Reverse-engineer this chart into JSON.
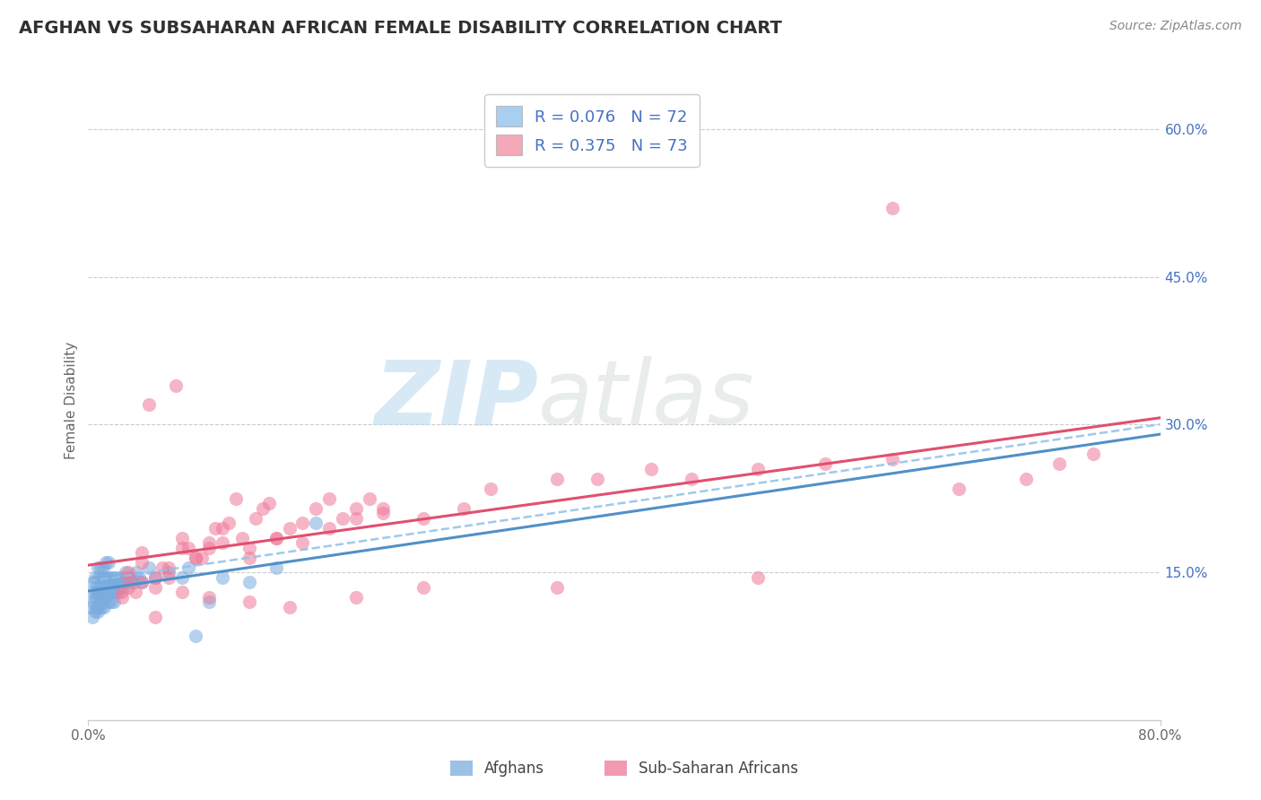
{
  "title": "AFGHAN VS SUBSAHARAN AFRICAN FEMALE DISABILITY CORRELATION CHART",
  "source": "Source: ZipAtlas.com",
  "ylabel": "Female Disability",
  "xlim": [
    0.0,
    0.8
  ],
  "ylim": [
    0.0,
    0.65
  ],
  "yticks": [
    0.15,
    0.3,
    0.45,
    0.6
  ],
  "ytick_labels": [
    "15.0%",
    "30.0%",
    "45.0%",
    "60.0%"
  ],
  "xticks": [
    0.0,
    0.8
  ],
  "xtick_labels": [
    "0.0%",
    "80.0%"
  ],
  "background_color": "#ffffff",
  "watermark_zip": "ZIP",
  "watermark_atlas": "atlas",
  "legend_R1": "0.076",
  "legend_N1": "72",
  "legend_R2": "0.375",
  "legend_N2": "73",
  "group1_label": "Afghans",
  "group2_label": "Sub-Saharan Africans",
  "group1_patch_color": "#a8cef0",
  "group2_patch_color": "#f4a8b8",
  "group1_scatter_color": "#7aacdf",
  "group2_scatter_color": "#f07898",
  "trend1_color": "#5090c8",
  "trend2_color": "#e05070",
  "title_color": "#303030",
  "source_color": "#888888",
  "title_fontsize": 14,
  "source_fontsize": 10,
  "axis_label_fontsize": 11,
  "tick_fontsize": 11,
  "ytick_color": "#4472c4",
  "xtick_color": "#666666",
  "grid_color": "#cccccc",
  "legend_text_color": "#4472c4",
  "legend_border_color": "#cccccc",
  "afghan_x": [
    0.002,
    0.003,
    0.003,
    0.004,
    0.004,
    0.005,
    0.005,
    0.005,
    0.006,
    0.006,
    0.006,
    0.007,
    0.007,
    0.007,
    0.008,
    0.008,
    0.008,
    0.009,
    0.009,
    0.009,
    0.01,
    0.01,
    0.01,
    0.011,
    0.011,
    0.011,
    0.012,
    0.012,
    0.012,
    0.013,
    0.013,
    0.013,
    0.014,
    0.014,
    0.015,
    0.015,
    0.015,
    0.016,
    0.016,
    0.017,
    0.017,
    0.018,
    0.018,
    0.019,
    0.019,
    0.02,
    0.02,
    0.021,
    0.022,
    0.023,
    0.024,
    0.025,
    0.026,
    0.027,
    0.028,
    0.03,
    0.032,
    0.034,
    0.036,
    0.038,
    0.04,
    0.045,
    0.05,
    0.06,
    0.07,
    0.075,
    0.08,
    0.09,
    0.1,
    0.12,
    0.14,
    0.17
  ],
  "afghan_y": [
    0.115,
    0.13,
    0.105,
    0.12,
    0.14,
    0.125,
    0.11,
    0.145,
    0.13,
    0.115,
    0.14,
    0.125,
    0.11,
    0.155,
    0.13,
    0.145,
    0.115,
    0.14,
    0.12,
    0.155,
    0.13,
    0.145,
    0.115,
    0.14,
    0.125,
    0.155,
    0.13,
    0.145,
    0.115,
    0.14,
    0.125,
    0.16,
    0.13,
    0.145,
    0.12,
    0.14,
    0.16,
    0.13,
    0.145,
    0.12,
    0.14,
    0.13,
    0.145,
    0.12,
    0.14,
    0.13,
    0.145,
    0.14,
    0.13,
    0.145,
    0.14,
    0.135,
    0.145,
    0.14,
    0.15,
    0.14,
    0.145,
    0.14,
    0.15,
    0.145,
    0.14,
    0.155,
    0.145,
    0.15,
    0.145,
    0.155,
    0.085,
    0.12,
    0.145,
    0.14,
    0.155,
    0.2
  ],
  "subsaharan_x": [
    0.03,
    0.04,
    0.045,
    0.05,
    0.055,
    0.06,
    0.065,
    0.07,
    0.075,
    0.08,
    0.085,
    0.09,
    0.095,
    0.1,
    0.105,
    0.11,
    0.115,
    0.12,
    0.125,
    0.13,
    0.135,
    0.14,
    0.15,
    0.16,
    0.17,
    0.18,
    0.19,
    0.2,
    0.21,
    0.22,
    0.025,
    0.03,
    0.035,
    0.04,
    0.05,
    0.06,
    0.07,
    0.08,
    0.09,
    0.1,
    0.12,
    0.14,
    0.16,
    0.18,
    0.2,
    0.22,
    0.25,
    0.28,
    0.3,
    0.35,
    0.38,
    0.42,
    0.45,
    0.5,
    0.55,
    0.6,
    0.65,
    0.7,
    0.725,
    0.75,
    0.025,
    0.03,
    0.04,
    0.05,
    0.07,
    0.09,
    0.12,
    0.15,
    0.2,
    0.25,
    0.35,
    0.5,
    0.6
  ],
  "subsaharan_y": [
    0.145,
    0.17,
    0.32,
    0.135,
    0.155,
    0.145,
    0.34,
    0.175,
    0.175,
    0.165,
    0.165,
    0.18,
    0.195,
    0.195,
    0.2,
    0.225,
    0.185,
    0.175,
    0.205,
    0.215,
    0.22,
    0.185,
    0.195,
    0.2,
    0.215,
    0.225,
    0.205,
    0.215,
    0.225,
    0.21,
    0.13,
    0.15,
    0.13,
    0.16,
    0.145,
    0.155,
    0.185,
    0.165,
    0.175,
    0.18,
    0.165,
    0.185,
    0.18,
    0.195,
    0.205,
    0.215,
    0.205,
    0.215,
    0.235,
    0.245,
    0.245,
    0.255,
    0.245,
    0.255,
    0.26,
    0.265,
    0.235,
    0.245,
    0.26,
    0.27,
    0.125,
    0.135,
    0.14,
    0.105,
    0.13,
    0.125,
    0.12,
    0.115,
    0.125,
    0.135,
    0.135,
    0.145,
    0.52
  ]
}
